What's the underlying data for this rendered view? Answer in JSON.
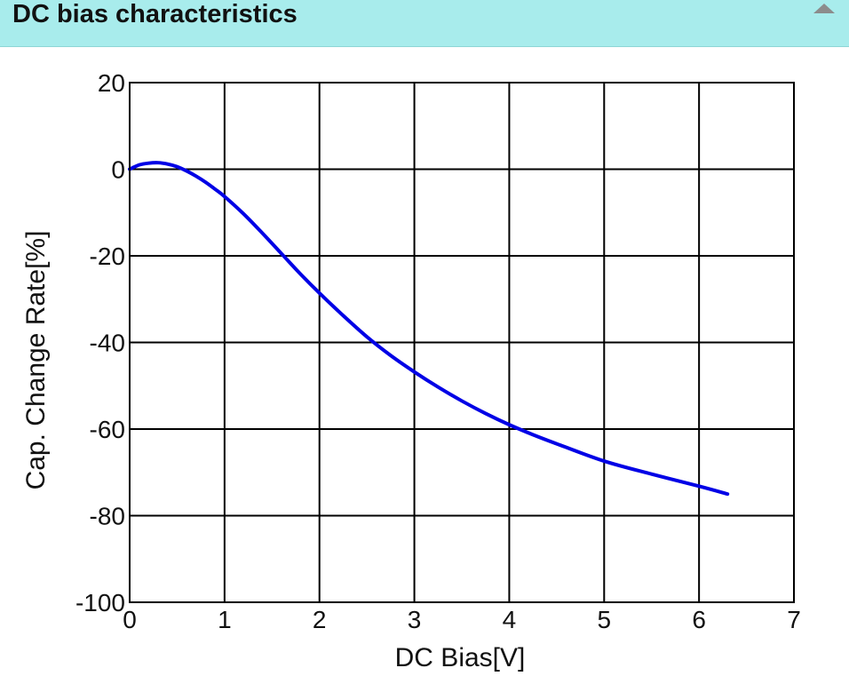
{
  "panel": {
    "title": "DC bias characteristics",
    "collapse_icon": "caret-up-icon"
  },
  "colors": {
    "header_bg": "#a8ecec",
    "series": "#0000e6",
    "grid": "#000000"
  },
  "chart_data": {
    "type": "line",
    "title": "",
    "xlabel": "DC Bias[V]",
    "ylabel": "Cap. Change Rate[%]",
    "xlim": [
      0,
      7
    ],
    "ylim": [
      -100,
      20
    ],
    "xticks": [
      0,
      1,
      2,
      3,
      4,
      5,
      6,
      7
    ],
    "yticks": [
      20,
      0,
      -20,
      -40,
      -60,
      -80,
      -100
    ],
    "grid": true,
    "series": [
      {
        "color": "#0000e6",
        "x": [
          0,
          0.1,
          0.2,
          0.3,
          0.4,
          0.5,
          0.6,
          0.7,
          0.8,
          0.9,
          1.0,
          1.2,
          1.4,
          1.6,
          1.8,
          2.0,
          2.25,
          2.5,
          2.75,
          3.0,
          3.25,
          3.5,
          3.75,
          4.0,
          4.25,
          4.5,
          5.0,
          5.5,
          6.0,
          6.3
        ],
        "y": [
          0,
          1.0,
          1.4,
          1.5,
          1.2,
          0.6,
          -0.4,
          -1.6,
          -3.0,
          -4.6,
          -6.3,
          -10.3,
          -14.8,
          -19.5,
          -24.2,
          -28.6,
          -33.8,
          -38.7,
          -43.0,
          -46.8,
          -50.3,
          -53.5,
          -56.4,
          -59.0,
          -61.3,
          -63.4,
          -67.4,
          -70.4,
          -73.2,
          -75.0
        ]
      }
    ]
  }
}
